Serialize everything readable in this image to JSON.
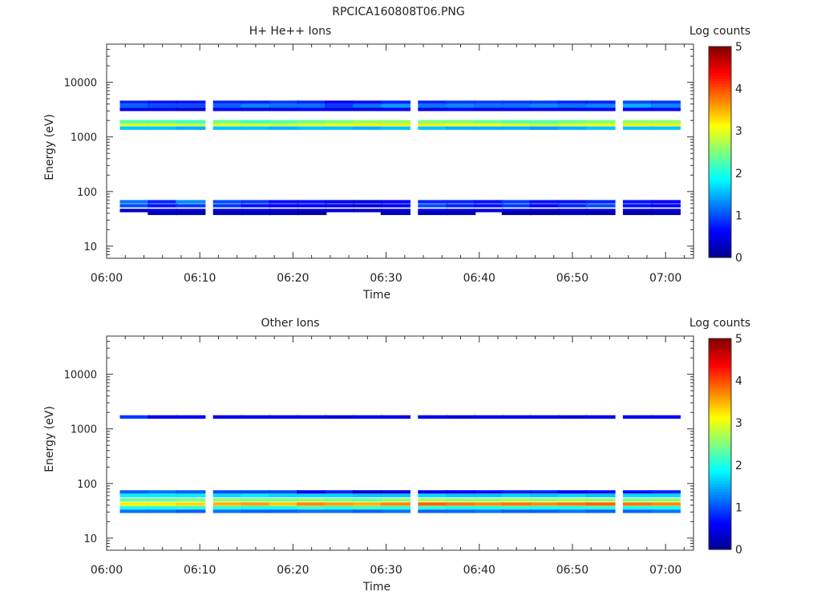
{
  "figure_title": "RPCICA160808T06.PNG",
  "colors": {
    "axis": "#333333",
    "background": "#ffffff"
  },
  "colormap": [
    "#00008f",
    "#0000ff",
    "#007fff",
    "#00ffff",
    "#7fff7f",
    "#ffff00",
    "#ff7f00",
    "#ff0000",
    "#800000"
  ],
  "chart_data": [
    {
      "type": "heatmap",
      "title": "H+ He++ Ions",
      "xlabel": "Time",
      "ylabel": "Energy (eV)",
      "x_scale": "time",
      "y_scale": "log",
      "xlim": [
        "06:00",
        "07:03"
      ],
      "ylim": [
        6,
        50000
      ],
      "xticks": [
        "06:00",
        "06:10",
        "06:20",
        "06:30",
        "06:40",
        "06:50",
        "07:00"
      ],
      "yticks": [
        10,
        100,
        1000,
        10000
      ],
      "ytick_labels": [
        "10",
        "100",
        "1000",
        "10000"
      ],
      "colorbar": {
        "label": "Log counts",
        "min": 0,
        "max": 5,
        "ticks": [
          "0",
          "1",
          "2",
          "3",
          "4",
          "5"
        ]
      },
      "time_bins": [
        "06:03",
        "06:06",
        "06:09",
        "06:13",
        "06:16",
        "06:19",
        "06:22",
        "06:25",
        "06:28",
        "06:31",
        "06:35",
        "06:38",
        "06:41",
        "06:44",
        "06:47",
        "06:50",
        "06:53",
        "06:57",
        "07:00"
      ],
      "layers": [
        {
          "e": 1700,
          "v": [
            3.0,
            3.0,
            2.9,
            3.0,
            3.0,
            2.9,
            3.0,
            3.1,
            3.2,
            3.2,
            3.2,
            3.1,
            3.1,
            3.0,
            2.9,
            3.0,
            3.1,
            3.2,
            3.2
          ]
        },
        {
          "e": 1900,
          "v": [
            2.3,
            2.3,
            2.2,
            2.4,
            2.2,
            2.3,
            2.4,
            2.5,
            2.6,
            2.6,
            2.5,
            2.5,
            2.4,
            2.3,
            2.3,
            2.4,
            2.5,
            2.6,
            2.6
          ]
        },
        {
          "e": 1450,
          "v": [
            1.6,
            1.6,
            1.5,
            1.6,
            1.6,
            1.5,
            1.6,
            1.6,
            1.5,
            1.6,
            1.6,
            1.5,
            1.5,
            1.5,
            1.4,
            1.5,
            1.6,
            1.6,
            1.6
          ]
        },
        {
          "e": 3700,
          "v": [
            1.1,
            1.0,
            1.0,
            1.1,
            1.3,
            1.2,
            1.2,
            0.9,
            1.2,
            1.4,
            1.2,
            1.3,
            1.2,
            1.2,
            1.3,
            1.2,
            1.3,
            1.5,
            1.3
          ]
        },
        {
          "e": 4300,
          "v": [
            0.8,
            0.7,
            0.7,
            0.8,
            0.8,
            0.9,
            0.8,
            0.6,
            0.7,
            0.8,
            0.8,
            0.9,
            0.9,
            0.9,
            0.9,
            0.8,
            0.8,
            1.0,
            0.9
          ]
        },
        {
          "e": 3200,
          "v": [
            0.5,
            0.5,
            0.4,
            0.6,
            0.5,
            0.5,
            0.6,
            0.5,
            0.5,
            0.6,
            0.5,
            0.6,
            0.5,
            0.6,
            0.5,
            0.5,
            0.6,
            0.6,
            0.6
          ]
        },
        {
          "e": 65,
          "v": [
            1.2,
            0.8,
            1.3,
            1.0,
            0.9,
            0.7,
            0.7,
            0.6,
            0.5,
            0.6,
            0.8,
            0.8,
            0.7,
            0.9,
            0.7,
            0.7,
            0.8,
            0.7,
            0.6
          ]
        },
        {
          "e": 55,
          "v": [
            1.0,
            0.7,
            0.9,
            0.9,
            0.7,
            0.6,
            0.6,
            0.5,
            0.4,
            0.6,
            1.0,
            0.8,
            0.7,
            0.9,
            0.6,
            0.8,
            1.0,
            0.7,
            0.6
          ]
        },
        {
          "e": 45,
          "v": [
            0.3,
            0.5,
            0.4,
            0.4,
            0.5,
            0.4,
            0.4,
            0.4,
            0.3,
            0.4,
            0.6,
            0.4,
            0.4,
            0.5,
            0.4,
            0.4,
            0.5,
            0.4,
            0.4
          ]
        },
        {
          "e": 40,
          "v": [
            0.0,
            0.2,
            0.2,
            0.2,
            0.2,
            0.2,
            0.1,
            0.0,
            0.0,
            0.2,
            0.2,
            0.2,
            0.0,
            0.1,
            0.1,
            0.2,
            0.1,
            0.1,
            0.2
          ]
        }
      ]
    },
    {
      "type": "heatmap",
      "title": "Other Ions",
      "xlabel": "Time",
      "ylabel": "Energy (eV)",
      "x_scale": "time",
      "y_scale": "log",
      "xlim": [
        "06:00",
        "07:03"
      ],
      "ylim": [
        6,
        50000
      ],
      "xticks": [
        "06:00",
        "06:10",
        "06:20",
        "06:30",
        "06:40",
        "06:50",
        "07:00"
      ],
      "yticks": [
        10,
        100,
        1000,
        10000
      ],
      "ytick_labels": [
        "10",
        "100",
        "1000",
        "10000"
      ],
      "colorbar": {
        "label": "Log counts",
        "min": 0,
        "max": 5,
        "ticks": [
          "0",
          "1",
          "2",
          "3",
          "4",
          "5"
        ]
      },
      "time_bins": [
        "06:03",
        "06:06",
        "06:09",
        "06:13",
        "06:16",
        "06:19",
        "06:22",
        "06:25",
        "06:28",
        "06:31",
        "06:35",
        "06:38",
        "06:41",
        "06:44",
        "06:47",
        "06:50",
        "06:53",
        "06:57",
        "07:00"
      ],
      "layers": [
        {
          "e": 42,
          "v": [
            3.2,
            3.2,
            3.3,
            3.5,
            3.6,
            3.4,
            3.7,
            3.6,
            3.5,
            3.7,
            3.9,
            3.8,
            3.7,
            3.8,
            3.7,
            3.8,
            3.9,
            3.8,
            3.7
          ]
        },
        {
          "e": 50,
          "v": [
            2.4,
            2.4,
            2.5,
            2.6,
            2.5,
            2.5,
            2.6,
            2.5,
            2.4,
            2.6,
            2.7,
            2.6,
            2.6,
            2.7,
            2.6,
            2.7,
            2.6,
            2.5,
            2.6
          ]
        },
        {
          "e": 36,
          "v": [
            2.0,
            2.0,
            2.1,
            2.1,
            2.0,
            2.0,
            2.2,
            2.1,
            2.2,
            2.1,
            2.1,
            2.0,
            2.0,
            2.1,
            2.0,
            2.0,
            2.1,
            2.0,
            2.0
          ]
        },
        {
          "e": 60,
          "v": [
            1.8,
            1.8,
            1.8,
            1.7,
            1.8,
            1.7,
            1.7,
            1.7,
            1.6,
            1.6,
            1.7,
            1.6,
            1.6,
            1.7,
            1.6,
            1.7,
            1.6,
            1.7,
            1.7
          ]
        },
        {
          "e": 70,
          "v": [
            1.1,
            1.2,
            1.1,
            1.0,
            1.0,
            1.0,
            0.6,
            0.8,
            0.4,
            0.5,
            0.6,
            0.6,
            0.7,
            0.8,
            0.8,
            0.6,
            0.7,
            0.7,
            0.8
          ]
        },
        {
          "e": 31,
          "v": [
            1.2,
            1.2,
            1.1,
            1.2,
            1.1,
            1.1,
            1.2,
            1.2,
            1.1,
            1.2,
            1.1,
            1.1,
            1.2,
            1.1,
            1.1,
            1.2,
            1.1,
            1.1,
            1.2
          ]
        },
        {
          "e": 1650,
          "v": [
            0.9,
            0.5,
            0.6,
            0.5,
            0.5,
            0.5,
            0.5,
            0.4,
            0.5,
            0.5,
            0.5,
            0.4,
            0.5,
            0.5,
            0.5,
            0.4,
            0.5,
            0.5,
            0.6
          ]
        }
      ]
    }
  ]
}
